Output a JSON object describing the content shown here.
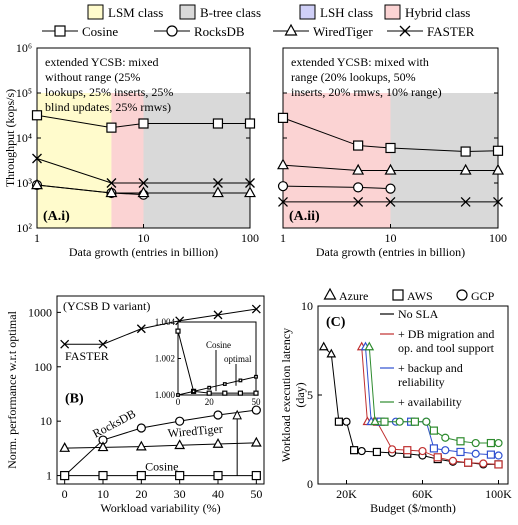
{
  "class_legend": [
    {
      "label": "LSM class",
      "color": "#fffbcc"
    },
    {
      "label": "B-tree class",
      "color": "#d9d9d9"
    },
    {
      "label": "LSH class",
      "color": "#cfcff7"
    },
    {
      "label": "Hybrid class",
      "color": "#fbd3d3"
    }
  ],
  "system_legend": [
    {
      "label": "Cosine",
      "marker": "square"
    },
    {
      "label": "RocksDB",
      "marker": "circle"
    },
    {
      "label": "WiredTiger",
      "marker": "triangle"
    },
    {
      "label": "FASTER",
      "marker": "cross"
    }
  ],
  "chart_data": [
    {
      "id": "A.i",
      "type": "line",
      "panel_label": "(A.i)",
      "xlabel": "Data growth (entries in billion)",
      "ylabel": "Throughput (kops/s)",
      "xscale": "log",
      "yscale": "log",
      "xlim": [
        1,
        100
      ],
      "ylim": [
        100,
        1000000
      ],
      "xticks": [
        1,
        10,
        100
      ],
      "xtick_labels": [
        "1",
        "10",
        "100"
      ],
      "yticks": [
        100,
        1000,
        10000,
        100000,
        1000000
      ],
      "ytick_labels": [
        "10²",
        "10³",
        "10⁴",
        "10⁵",
        "10⁶"
      ],
      "annotation": [
        "extended YCSB: mixed",
        "without range (25%",
        "lookups, 25% inserts, 25%",
        "blind updates, 25% rmws)"
      ],
      "regions": [
        {
          "class": "LSM class",
          "x": [
            1,
            5
          ]
        },
        {
          "class": "Hybrid class",
          "x": [
            5,
            10
          ]
        },
        {
          "class": "B-tree class",
          "x": [
            10,
            100
          ]
        }
      ],
      "series": [
        {
          "name": "Cosine",
          "marker": "square",
          "x": [
            1,
            5,
            10,
            50,
            100
          ],
          "y": [
            32000,
            17000,
            21000,
            21000,
            21000
          ]
        },
        {
          "name": "RocksDB",
          "marker": "circle",
          "x": [
            1,
            5,
            10
          ],
          "y": [
            900,
            600,
            550
          ]
        },
        {
          "name": "WiredTiger",
          "marker": "triangle",
          "x": [
            1,
            5,
            10,
            50,
            100
          ],
          "y": [
            900,
            600,
            600,
            600,
            600
          ]
        },
        {
          "name": "FASTER",
          "marker": "cross",
          "x": [
            1,
            5,
            10,
            50,
            100
          ],
          "y": [
            3500,
            1000,
            1000,
            1000,
            1000
          ]
        }
      ]
    },
    {
      "id": "A.ii",
      "type": "line",
      "panel_label": "(A.ii)",
      "xlabel": "Data growth (entries in billion)",
      "ylabel": "",
      "xscale": "log",
      "yscale": "log",
      "xlim": [
        1,
        100
      ],
      "ylim": [
        100,
        1000000
      ],
      "xticks": [
        1,
        10,
        100
      ],
      "xtick_labels": [
        "1",
        "10",
        "100"
      ],
      "yticks": [
        100,
        1000,
        10000,
        100000,
        1000000
      ],
      "ytick_labels": [
        "",
        "",
        "",
        "",
        ""
      ],
      "annotation": [
        "extended YCSB: mixed with",
        "range (20% lookups, 50%",
        "inserts, 20% rmws, 10% range)"
      ],
      "regions": [
        {
          "class": "Hybrid class",
          "x": [
            1,
            10
          ]
        },
        {
          "class": "B-tree class",
          "x": [
            10,
            100
          ]
        }
      ],
      "series": [
        {
          "name": "Cosine",
          "marker": "square",
          "x": [
            1,
            5,
            10,
            50,
            100
          ],
          "y": [
            28000,
            6800,
            6000,
            5000,
            5200
          ]
        },
        {
          "name": "RocksDB",
          "marker": "circle",
          "x": [
            1,
            5,
            10
          ],
          "y": [
            850,
            800,
            750
          ]
        },
        {
          "name": "WiredTiger",
          "marker": "triangle",
          "x": [
            1,
            5,
            10,
            50,
            100
          ],
          "y": [
            2500,
            1900,
            1900,
            1900,
            1900
          ]
        },
        {
          "name": "FASTER",
          "marker": "cross",
          "x": [
            1,
            5,
            10,
            50,
            100
          ],
          "y": [
            380,
            380,
            380,
            380,
            380
          ]
        }
      ]
    },
    {
      "id": "B",
      "type": "line",
      "panel_label": "(B)",
      "xlabel": "Workload variability (%)",
      "ylabel": "Norm. performance w.r.t optimal",
      "xscale": "linear",
      "yscale": "log",
      "xlim": [
        -2,
        52
      ],
      "ylim": [
        0.7,
        2000
      ],
      "xticks": [
        0,
        10,
        20,
        30,
        40,
        50
      ],
      "xtick_labels": [
        "0",
        "10",
        "20",
        "30",
        "40",
        "50"
      ],
      "yticks": [
        1,
        10,
        100,
        1000
      ],
      "ytick_labels": [
        "1",
        "10",
        "100",
        "1000"
      ],
      "title_note": "(YCSB D variant)",
      "series": [
        {
          "name": "FASTER",
          "marker": "cross",
          "label": "FASTER",
          "x": [
            0,
            10,
            20,
            30,
            40,
            50
          ],
          "y": [
            260,
            260,
            500,
            700,
            900,
            1150
          ]
        },
        {
          "name": "RocksDB",
          "marker": "circle",
          "label": "RocksDB",
          "x": [
            0,
            10,
            20,
            30,
            40,
            50
          ],
          "y": [
            1,
            4.5,
            7.5,
            10,
            13,
            16
          ]
        },
        {
          "name": "WiredTiger",
          "marker": "triangle",
          "label": "WiredTiger",
          "x": [
            0,
            10,
            20,
            30,
            40,
            50
          ],
          "y": [
            3.2,
            3.3,
            3.4,
            3.6,
            3.8,
            4
          ]
        },
        {
          "name": "Cosine",
          "marker": "square",
          "label": "Cosine",
          "x": [
            0,
            10,
            20,
            30,
            40,
            50
          ],
          "y": [
            1,
            1,
            1,
            1,
            1,
            1
          ]
        }
      ],
      "inset": {
        "xlim": [
          0,
          50
        ],
        "ylim": [
          1.0,
          1.004
        ],
        "xticks": [
          0,
          20,
          50
        ],
        "xtick_labels": [
          "0",
          "20",
          "50"
        ],
        "yticks": [
          1.0,
          1.002,
          1.004
        ],
        "ytick_labels": [
          "1.000",
          "1.002",
          "1.004"
        ],
        "labels": [
          "Cosine",
          "optimal"
        ],
        "cosine": {
          "x": [
            0,
            10,
            20,
            30,
            40,
            50
          ],
          "y": [
            1.0035,
            1.0002,
            1.0001,
            1.0001,
            1.0001,
            1.0001
          ]
        },
        "optimal": {
          "x": [
            0,
            10,
            20,
            30,
            40,
            50
          ],
          "y": [
            1.0,
            1.0002,
            1.0004,
            1.0006,
            1.0008,
            1.001
          ]
        }
      }
    },
    {
      "id": "C",
      "type": "line",
      "panel_label": "(C)",
      "xlabel": "Budget ($/month)",
      "ylabel": "Workload execution latency (day)",
      "xscale": "linear",
      "yscale": "linear",
      "xlim": [
        5000,
        105000
      ],
      "ylim": [
        0,
        10
      ],
      "xticks": [
        20000,
        60000,
        100000
      ],
      "xtick_labels": [
        "20K",
        "60K",
        "100K"
      ],
      "yticks": [
        0,
        5,
        10
      ],
      "ytick_labels": [
        "0",
        "5",
        "10"
      ],
      "cloud_legend": [
        {
          "label": "Azure",
          "marker": "triangle"
        },
        {
          "label": "AWS",
          "marker": "square"
        },
        {
          "label": "GCP",
          "marker": "circle"
        }
      ],
      "series": [
        {
          "name": "No SLA",
          "color": "#000000",
          "x": [
            8000,
            12000,
            16000,
            20000,
            24000,
            28000,
            36000,
            44000,
            52000,
            60000,
            68000,
            76000,
            84000,
            92000,
            100000
          ],
          "y": [
            7.7,
            7.3,
            3.5,
            3.5,
            1.9,
            1.85,
            1.8,
            1.75,
            1.7,
            1.6,
            1.4,
            1.25,
            1.2,
            1.1,
            1.1
          ]
        },
        {
          "name": "+ DB migration and op. and tool support",
          "color": "#c03030",
          "x": [
            28000,
            31000,
            36000,
            44000,
            52000,
            60000,
            68000,
            76000,
            84000,
            92000,
            100000
          ],
          "y": [
            7.7,
            3.5,
            3.5,
            1.95,
            1.9,
            1.85,
            1.5,
            1.3,
            1.2,
            1.15,
            1.1
          ]
        },
        {
          "name": "+ backup and reliability",
          "color": "#3050d0",
          "x": [
            30000,
            33000,
            38000,
            46000,
            54000,
            62000,
            66000,
            72000,
            80000,
            88000,
            96000,
            100000
          ],
          "y": [
            7.7,
            3.5,
            3.5,
            3.5,
            3.5,
            3.5,
            2.0,
            1.9,
            1.8,
            1.7,
            1.65,
            1.6
          ]
        },
        {
          "name": "+ availability",
          "color": "#2e8b2e",
          "x": [
            32000,
            35000,
            40000,
            48000,
            56000,
            62000,
            66000,
            72000,
            80000,
            88000,
            96000,
            100000
          ],
          "y": [
            7.7,
            3.5,
            3.5,
            3.5,
            3.5,
            3.5,
            3.0,
            2.6,
            2.4,
            2.3,
            2.3,
            2.3
          ]
        }
      ]
    }
  ]
}
